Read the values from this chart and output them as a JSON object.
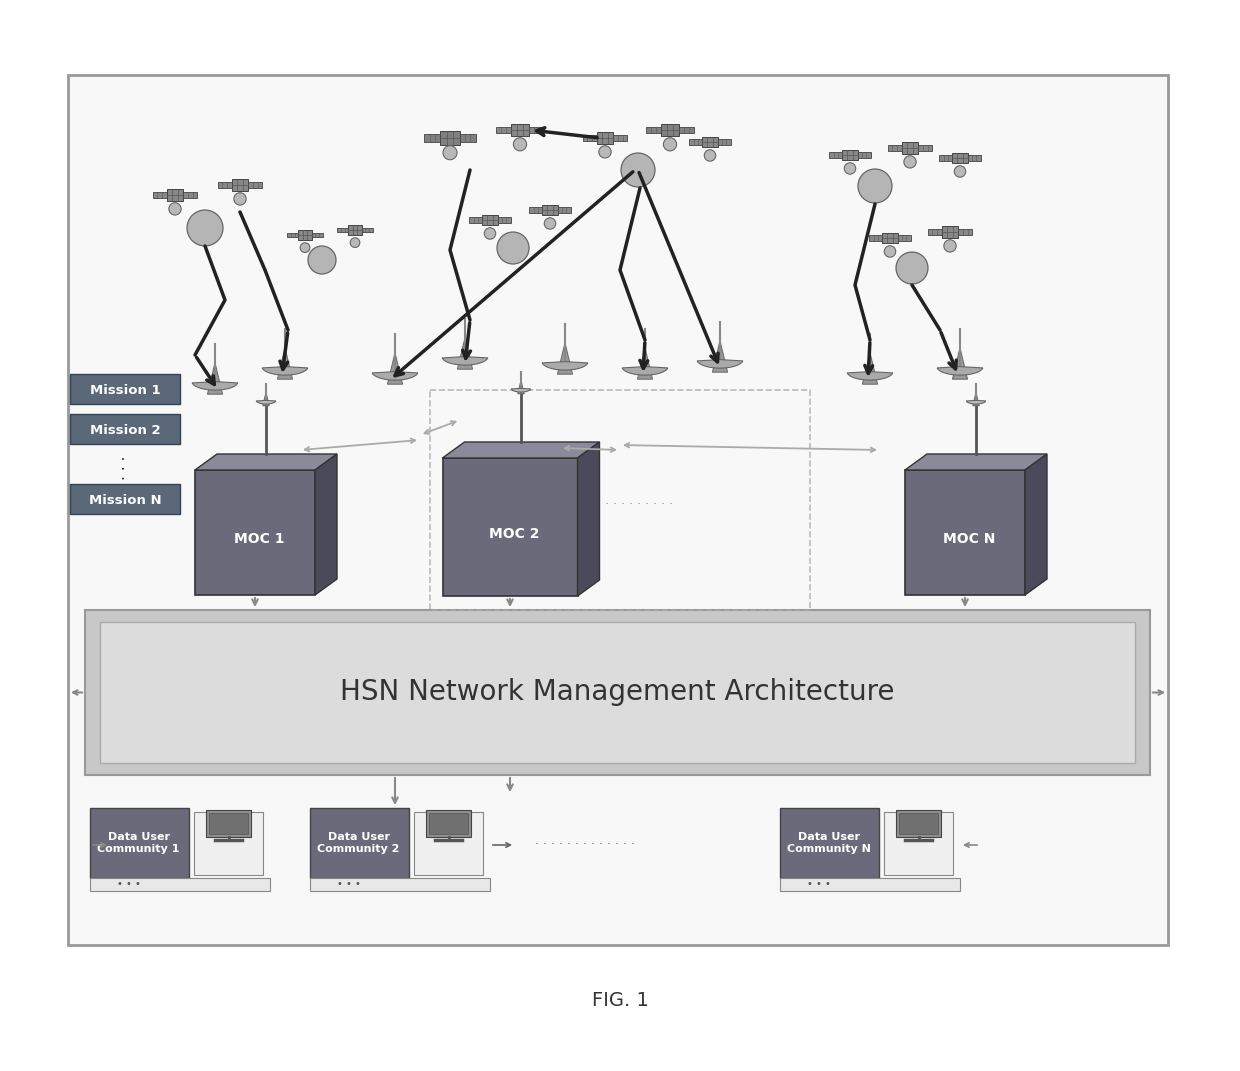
{
  "title": "FIG. 1",
  "bg_color": "#ffffff",
  "hsn_label": "HSN Network Management Architecture",
  "mission_labels": [
    "Mission 1",
    "Mission 2",
    "Mission N"
  ],
  "moc_labels": [
    "MOC 1",
    "MOC 2",
    "MOC N"
  ],
  "duc_labels": [
    "Data User\nCommunity 1",
    "Data User\nCommunity 2",
    "Data User\nCommunity N"
  ]
}
